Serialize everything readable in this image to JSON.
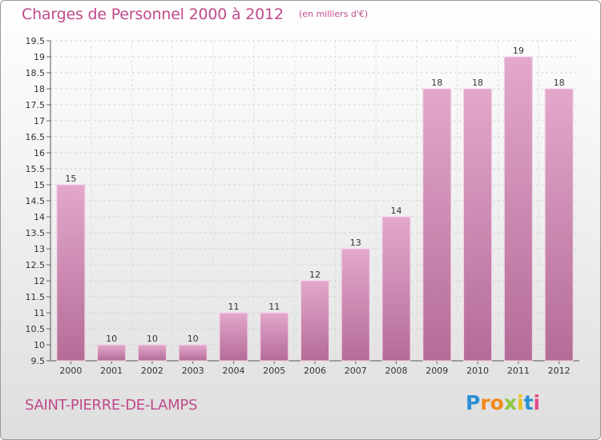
{
  "header": {
    "title": "Charges de Personnel 2000 à 2012",
    "subtitle": "(en milliers d'€)"
  },
  "footer": {
    "commune": "SAINT-PIERRE-DE-LAMPS",
    "logo_letters": [
      "P",
      "r",
      "o",
      "x",
      "i",
      "t",
      "i"
    ],
    "logo_colors": [
      "#2b8fd6",
      "#f08a1c",
      "#f08a1c",
      "#8cc63f",
      "#e8c31a",
      "#2b8fd6",
      "#e54b8a"
    ]
  },
  "chart_data": {
    "type": "bar",
    "categories": [
      "2000",
      "2001",
      "2002",
      "2003",
      "2004",
      "2005",
      "2006",
      "2007",
      "2008",
      "2009",
      "2010",
      "2011",
      "2012"
    ],
    "values": [
      15,
      10,
      10,
      10,
      11,
      11,
      12,
      13,
      14,
      18,
      18,
      19,
      18
    ],
    "value_labels": [
      "15",
      "10",
      "10",
      "10",
      "11",
      "11",
      "12",
      "13",
      "14",
      "18",
      "18",
      "19",
      "18"
    ],
    "ylim": [
      9.5,
      19.5
    ],
    "yticks": [
      9.5,
      10,
      10.5,
      11,
      11.5,
      12,
      12.5,
      13,
      13.5,
      14,
      14.5,
      15,
      15.5,
      16,
      16.5,
      17,
      17.5,
      18,
      18.5,
      19,
      19.5
    ],
    "ytick_labels": [
      "9.5",
      "10",
      "10.5",
      "11",
      "11.5",
      "12",
      "12.5",
      "13",
      "13.5",
      "14",
      "14.5",
      "15",
      "15.5",
      "16",
      "16.5",
      "17",
      "17.5",
      "18",
      "18.5",
      "19",
      "19.5"
    ],
    "grid": true,
    "bar_color_top": "#e3a8cc",
    "bar_color_bottom": "#b46c97",
    "bar_edge": "#f2d3e5"
  }
}
